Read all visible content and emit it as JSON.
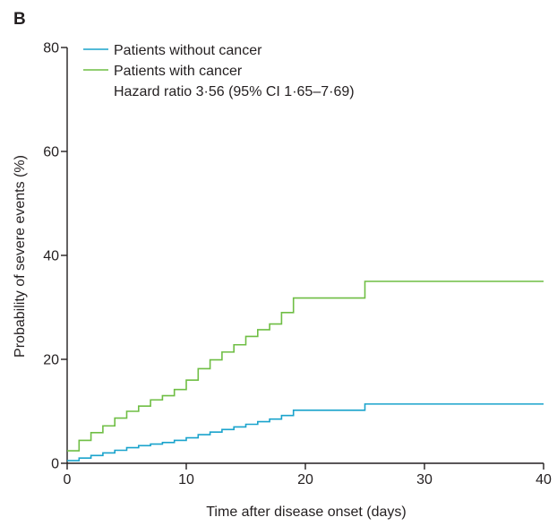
{
  "panel_label": "B",
  "chart_data": {
    "type": "line",
    "step": true,
    "xlabel": "Time after disease onset (days)",
    "ylabel": "Probability of severe events (%)",
    "xlim": [
      0,
      40
    ],
    "ylim": [
      0,
      80
    ],
    "xticks": [
      0,
      10,
      20,
      30,
      40
    ],
    "yticks": [
      0,
      20,
      40,
      60,
      80
    ],
    "grid": false,
    "legend_position": "top-left",
    "annotation": "Hazard ratio 3·56 (95% CI 1·65–7·69)",
    "series": [
      {
        "name": "Patients without cancer",
        "color": "#1aa3cc",
        "x": [
          0,
          1,
          2,
          3,
          4,
          5,
          6,
          7,
          8,
          9,
          10,
          11,
          12,
          13,
          14,
          15,
          16,
          17,
          18,
          19,
          25,
          40
        ],
        "y": [
          0.5,
          1.0,
          1.5,
          2.0,
          2.5,
          3.0,
          3.4,
          3.7,
          4.0,
          4.4,
          4.9,
          5.5,
          6.0,
          6.5,
          7.0,
          7.5,
          8.0,
          8.5,
          9.2,
          10.2,
          11.4,
          11.4
        ]
      },
      {
        "name": "Patients with cancer",
        "color": "#6fbe44",
        "x": [
          0,
          1,
          2,
          3,
          4,
          5,
          6,
          7,
          8,
          9,
          10,
          11,
          12,
          13,
          14,
          15,
          16,
          17,
          18,
          19,
          25,
          40
        ],
        "y": [
          2.4,
          4.4,
          5.9,
          7.2,
          8.7,
          10.0,
          11.0,
          12.2,
          13.0,
          14.2,
          16.0,
          18.2,
          19.9,
          21.4,
          22.8,
          24.4,
          25.7,
          26.8,
          29.0,
          31.8,
          35.0,
          35.0
        ]
      }
    ]
  }
}
